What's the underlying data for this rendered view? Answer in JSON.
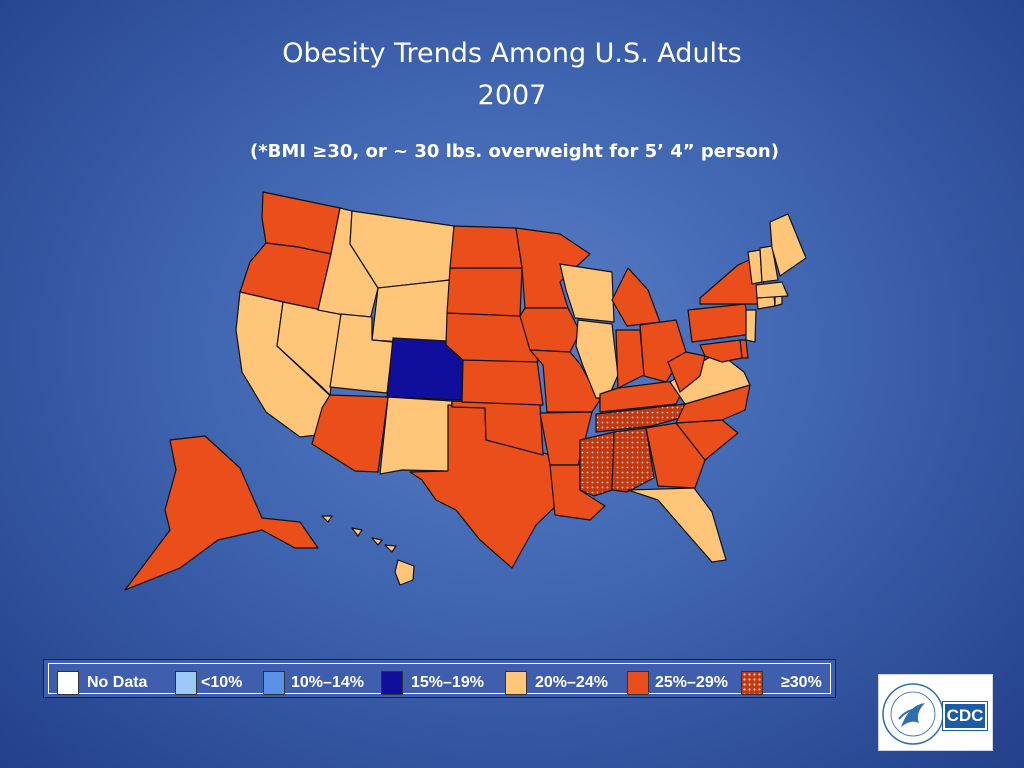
{
  "title_line1": "Obesity Trends Among U.S. Adults",
  "title_line2": "2007",
  "subtitle": "(*BMI ≥30, or ~ 30 lbs. overweight for 5’ 4” person)",
  "colors": {
    "no_data": "#ffffff",
    "lt10": "#9ccaf7",
    "c10_14": "#5b92e8",
    "c15_19": "#0f0f9c",
    "c20_24": "#ffc67a",
    "c25_29": "#e94e1b",
    "ge30": "#c23a13"
  },
  "legend": [
    {
      "key": "no_data",
      "label": "No Data"
    },
    {
      "key": "lt10",
      "label": "<10%"
    },
    {
      "key": "c10_14",
      "label": "10%–14%"
    },
    {
      "key": "c15_19",
      "label": "15%–19%"
    },
    {
      "key": "c20_24",
      "label": "20%–24%"
    },
    {
      "key": "c25_29",
      "label": "25%–29%"
    },
    {
      "key": "ge30",
      "label": "≥30%"
    }
  ],
  "states": {
    "WA": "c25_29",
    "OR": "c25_29",
    "CA": "c20_24",
    "NV": "c20_24",
    "ID": "c20_24",
    "MT": "c20_24",
    "WY": "c20_24",
    "UT": "c20_24",
    "CO": "c15_19",
    "AZ": "c25_29",
    "NM": "c20_24",
    "TX": "c25_29",
    "OK": "c25_29",
    "KS": "c25_29",
    "NE": "c25_29",
    "SD": "c25_29",
    "ND": "c25_29",
    "MN": "c25_29",
    "IA": "c25_29",
    "MO": "c25_29",
    "AR": "c25_29",
    "LA": "c25_29",
    "WI": "c20_24",
    "IL": "c20_24",
    "MI": "c25_29",
    "IN": "c25_29",
    "OH": "c25_29",
    "KY": "c25_29",
    "TN": "ge30",
    "MS": "ge30",
    "AL": "ge30",
    "GA": "c25_29",
    "FL": "c20_24",
    "SC": "c25_29",
    "NC": "c25_29",
    "VA": "c20_24",
    "WV": "c25_29",
    "PA": "c25_29",
    "NY": "c25_29",
    "NJ": "c20_24",
    "DE": "c25_29",
    "MD": "c25_29",
    "CT": "c20_24",
    "RI": "c20_24",
    "MA": "c20_24",
    "VT": "c20_24",
    "NH": "c20_24",
    "ME": "c20_24",
    "AK": "c25_29",
    "HI": "c20_24"
  },
  "logo_text": "CDC"
}
